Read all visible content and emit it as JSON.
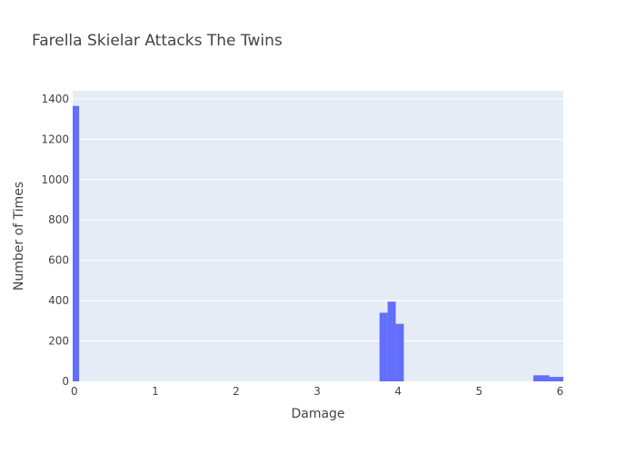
{
  "chart_data": {
    "type": "bar",
    "title": "Farella Skielar Attacks The Twins",
    "xlabel": "Damage",
    "ylabel": "Number of Times",
    "xlim": [
      -0.02,
      6.04
    ],
    "ylim": [
      0,
      1440
    ],
    "xticks": [
      0,
      1,
      2,
      3,
      4,
      5,
      6
    ],
    "yticks": [
      0,
      200,
      400,
      600,
      800,
      1000,
      1200,
      1400
    ],
    "bin_width": 0.1,
    "bins": [
      {
        "x0": -0.02,
        "x1": 0.06,
        "count": 1365
      },
      {
        "x0": 3.77,
        "x1": 3.87,
        "count": 340
      },
      {
        "x0": 3.87,
        "x1": 3.97,
        "count": 395
      },
      {
        "x0": 3.97,
        "x1": 4.07,
        "count": 285
      },
      {
        "x0": 5.67,
        "x1": 5.87,
        "count": 30
      },
      {
        "x0": 5.87,
        "x1": 6.04,
        "count": 22
      }
    ],
    "bar_color": "#636efa",
    "plot_bg": "#e5ecf6",
    "grid": true,
    "legend": "none"
  }
}
